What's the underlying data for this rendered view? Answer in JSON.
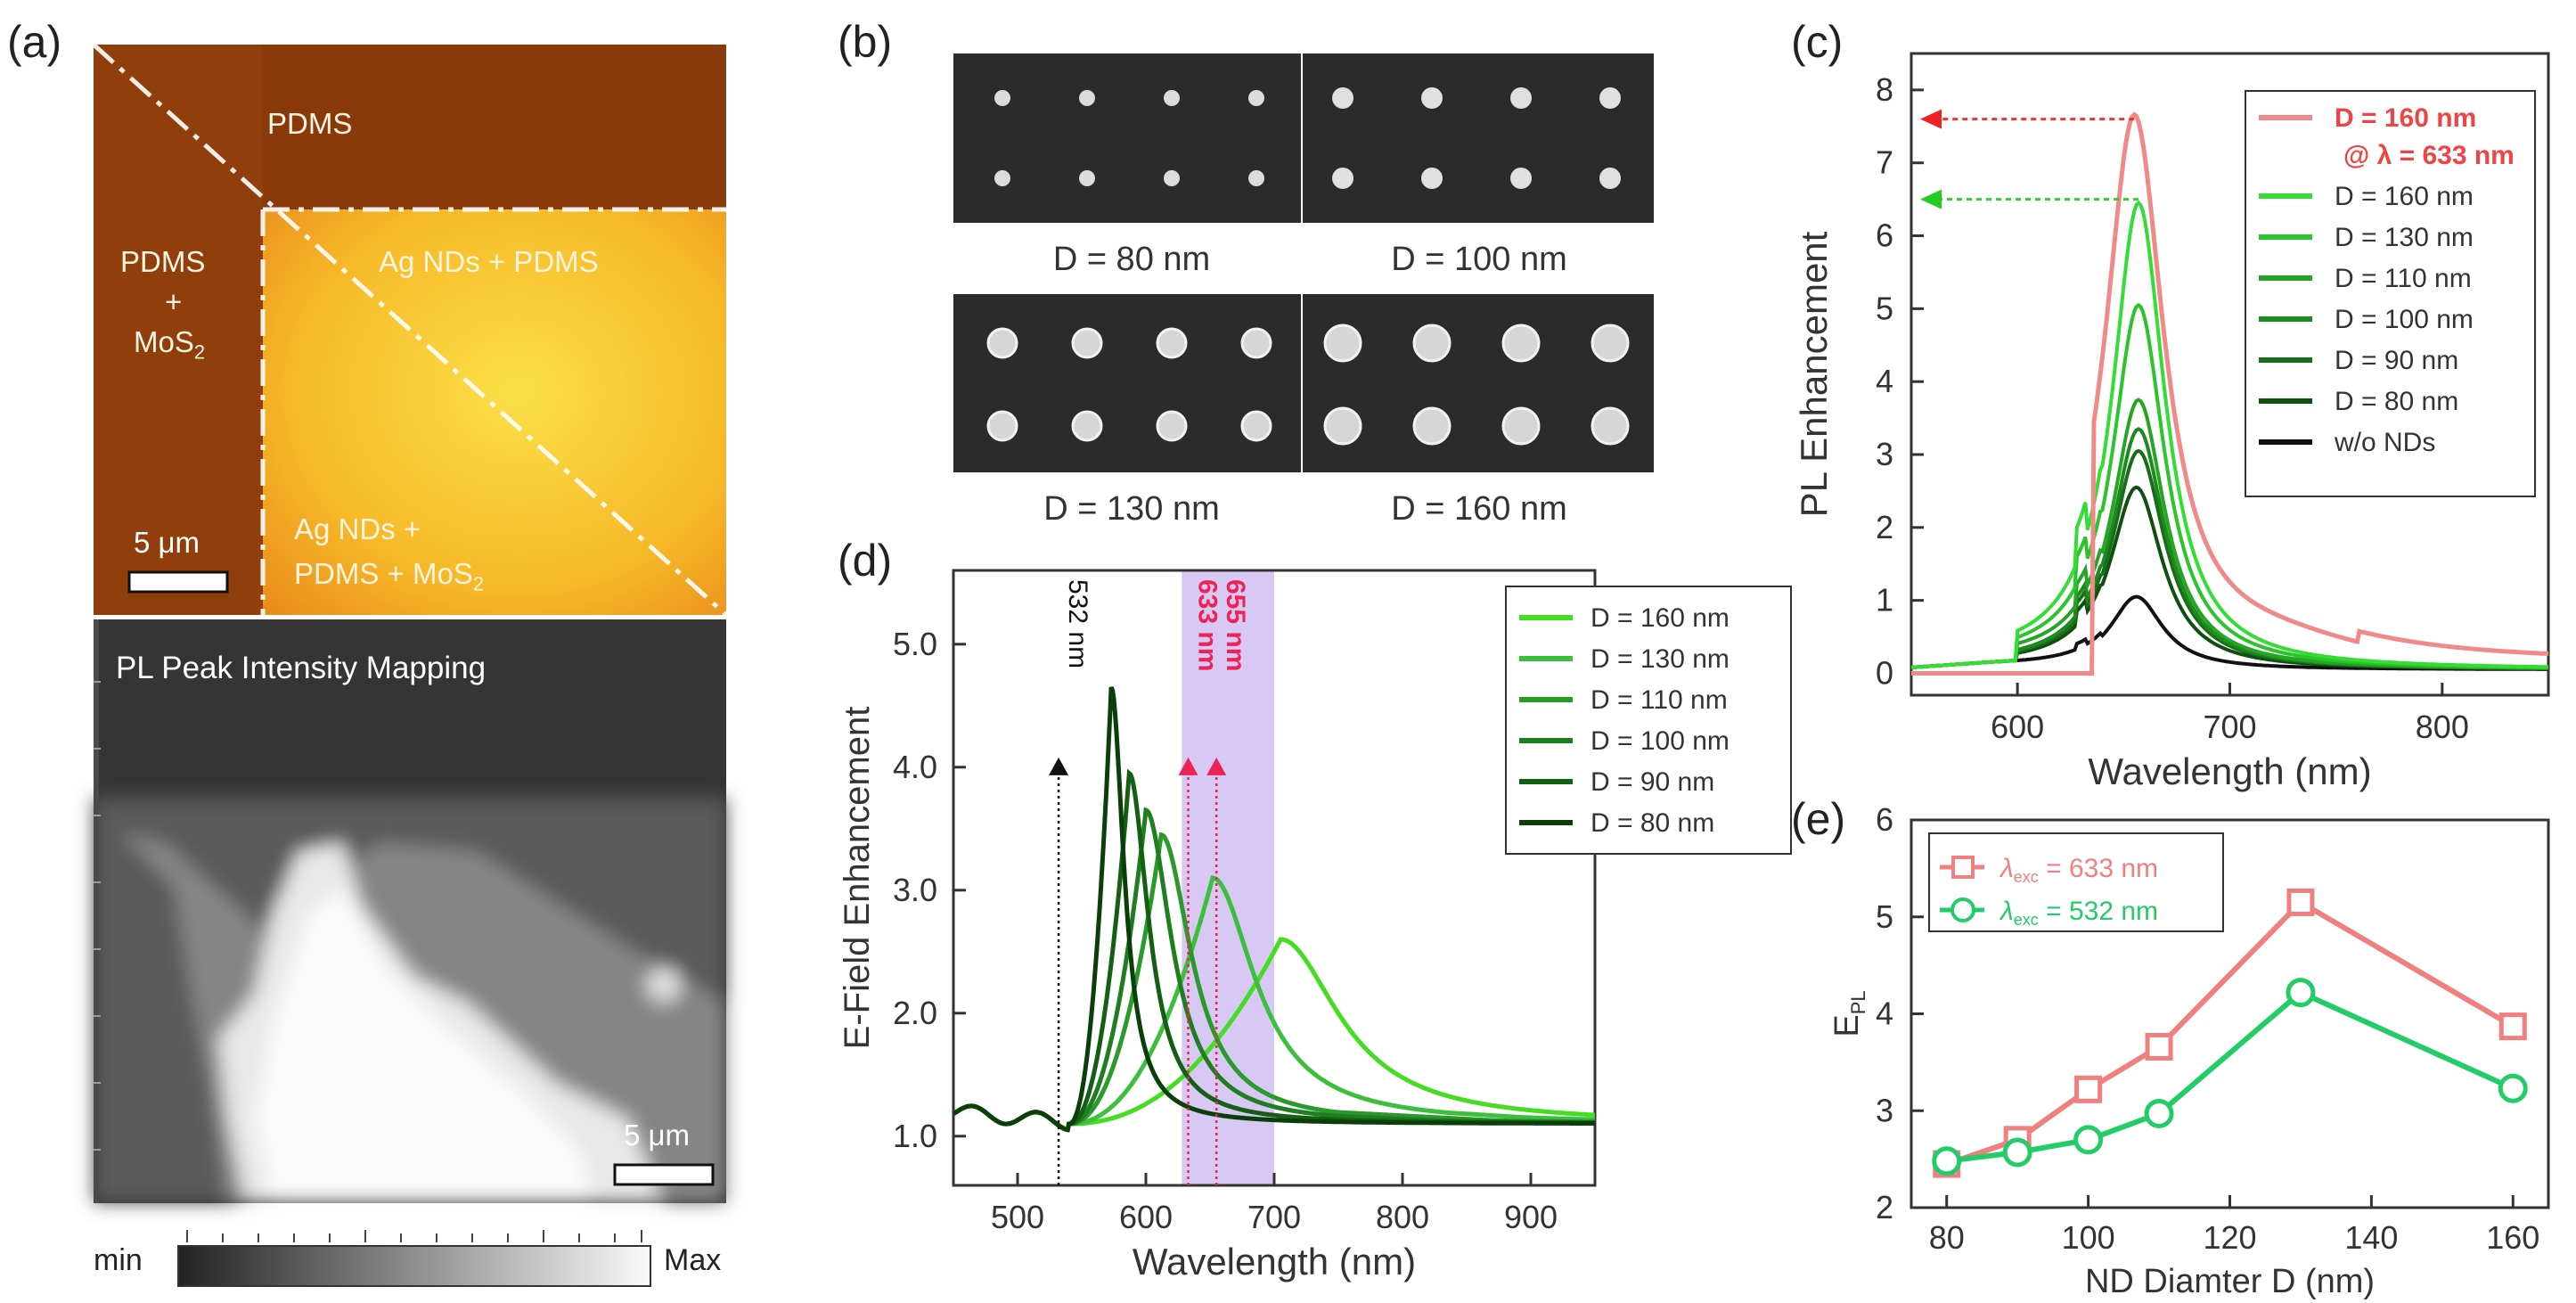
{
  "panel_labels": {
    "a": "(a)",
    "b": "(b)",
    "c": "(c)",
    "d": "(d)",
    "e": "(e)"
  },
  "panel_a": {
    "top": {
      "labels": [
        "PDMS",
        "PDMS",
        "+",
        "MoS",
        "Ag NDs + PDMS",
        "Ag NDs +",
        "PDMS + MoS"
      ],
      "mos2_subscript": "2",
      "scale": "5 μm"
    },
    "bottom": {
      "title": "PL Peak Intensity Mapping",
      "scale": "5 μm"
    },
    "colorbar": {
      "min": "min",
      "max": "Max"
    }
  },
  "panel_b": {
    "labels": [
      "D = 80 nm",
      "D = 100 nm",
      "D = 130 nm",
      "D = 160 nm"
    ]
  },
  "chart_data": [
    {
      "id": "c",
      "type": "line",
      "xlabel": "Wavelength (nm)",
      "ylabel": "PL Enhancement",
      "xlim": [
        550,
        850
      ],
      "ylim": [
        -0.3,
        8.5
      ],
      "xticks": [
        600,
        700,
        800
      ],
      "yticks": [
        0,
        1,
        2,
        3,
        4,
        5,
        6,
        7,
        8
      ],
      "annotations": {
        "red_arrow_y": 7.6,
        "green_arrow_y": 6.5
      },
      "series": [
        {
          "name": "D = 160 nm",
          "name2": "@ λ = 633 nm",
          "color": "#f08a8a",
          "peak_x": 655,
          "peak_y": 7.5
        },
        {
          "name": "D = 160 nm",
          "color": "#33dd33",
          "peak_x": 657,
          "peak_y": 6.4
        },
        {
          "name": "D = 130 nm",
          "color": "#2bc42b",
          "peak_x": 657,
          "peak_y": 5.0
        },
        {
          "name": "D = 110 nm",
          "color": "#24a624",
          "peak_x": 657,
          "peak_y": 3.7
        },
        {
          "name": "D = 100 nm",
          "color": "#1d8a1d",
          "peak_x": 657,
          "peak_y": 3.3
        },
        {
          "name": "D = 90 nm",
          "color": "#176e17",
          "peak_x": 657,
          "peak_y": 3.0
        },
        {
          "name": "D = 80 nm",
          "color": "#0f4f0f",
          "peak_x": 656,
          "peak_y": 2.5
        },
        {
          "name": "w/o NDs",
          "color": "#111111",
          "peak_x": 656,
          "peak_y": 1.0
        }
      ]
    },
    {
      "id": "d",
      "type": "line",
      "xlabel": "Wavelength (nm)",
      "ylabel": "E-Field Enhancement",
      "xlim": [
        450,
        950
      ],
      "ylim": [
        0.6,
        5.6
      ],
      "xticks": [
        500,
        600,
        700,
        800,
        900
      ],
      "yticks": [
        "1.0",
        "2.0",
        "3.0",
        "4.0",
        "5.0"
      ],
      "highlight_band": [
        628,
        700
      ],
      "markers": [
        {
          "x": 532,
          "label": "532 nm",
          "color": "#111111"
        },
        {
          "x": 633,
          "label": "633 nm",
          "color": "#ee2255"
        },
        {
          "x": 655,
          "label": "655 nm",
          "color": "#ee2255"
        }
      ],
      "series": [
        {
          "name": "D = 160 nm",
          "color": "#44dd22",
          "peak_x": 705,
          "peak_y": 2.6
        },
        {
          "name": "D = 130 nm",
          "color": "#3cbf3c",
          "peak_x": 652,
          "peak_y": 3.1
        },
        {
          "name": "D = 110 nm",
          "color": "#2a9a2a",
          "peak_x": 612,
          "peak_y": 3.45
        },
        {
          "name": "D = 100 nm",
          "color": "#1f7e1f",
          "peak_x": 600,
          "peak_y": 3.65
        },
        {
          "name": "D = 90 nm",
          "color": "#155f15",
          "peak_x": 587,
          "peak_y": 3.95
        },
        {
          "name": "D = 80 nm",
          "color": "#0a3f0a",
          "peak_x": 573,
          "peak_y": 4.65
        }
      ]
    },
    {
      "id": "e",
      "type": "line",
      "xlabel": "ND Diamter D (nm)",
      "ylabel": "E",
      "ylabel_sub": "PL",
      "xlim": [
        75,
        165
      ],
      "ylim": [
        2,
        6
      ],
      "xticks": [
        80,
        100,
        120,
        140,
        160
      ],
      "yticks": [
        2,
        3,
        4,
        5,
        6
      ],
      "series": [
        {
          "name": "λ",
          "sub": "exc",
          "eq": " = 633 nm",
          "color": "#f07f7f",
          "marker": "square",
          "x": [
            80,
            90,
            100,
            110,
            130,
            160
          ],
          "y": [
            2.45,
            2.7,
            3.22,
            3.66,
            5.15,
            3.87
          ]
        },
        {
          "name": "λ",
          "sub": "exc",
          "eq": " = 532 nm",
          "color": "#22cc66",
          "marker": "circle",
          "x": [
            80,
            90,
            100,
            110,
            130,
            160
          ],
          "y": [
            2.48,
            2.57,
            2.7,
            2.97,
            4.22,
            3.23
          ]
        }
      ]
    }
  ]
}
